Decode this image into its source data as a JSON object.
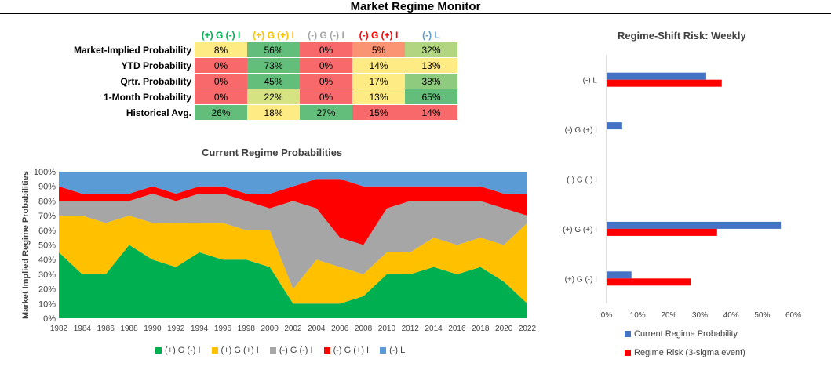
{
  "title": "Market Regime Monitor",
  "colors": {
    "green": "#00b050",
    "yellow": "#ffc000",
    "gray": "#a6a6a6",
    "red": "#ff0000",
    "blue": "#5b9bd5",
    "barblue": "#4472c4"
  },
  "table": {
    "headers": [
      {
        "label": "(+) G (-) I",
        "color": "#00b050"
      },
      {
        "label": "(+) G (+) I",
        "color": "#ffc000"
      },
      {
        "label": "(-) G (-) I",
        "color": "#a6a6a6"
      },
      {
        "label": "(-) G (+) I",
        "color": "#ff0000"
      },
      {
        "label": "(-) L",
        "color": "#5b9bd5"
      }
    ],
    "rows": [
      {
        "label": "Market-Implied Probability",
        "values": [
          "8%",
          "56%",
          "0%",
          "5%",
          "32%"
        ],
        "colors": [
          "#ffeb84",
          "#63be7b",
          "#f8696b",
          "#fa9473",
          "#b1d580"
        ]
      },
      {
        "label": "YTD Probability",
        "values": [
          "0%",
          "73%",
          "0%",
          "14%",
          "13%"
        ],
        "colors": [
          "#f8696b",
          "#63be7b",
          "#f8696b",
          "#ffeb84",
          "#ffeb84"
        ]
      },
      {
        "label": "Qrtr. Probability",
        "values": [
          "0%",
          "45%",
          "0%",
          "17%",
          "38%"
        ],
        "colors": [
          "#f8696b",
          "#63be7b",
          "#f8696b",
          "#ffeb84",
          "#8fcb7e"
        ]
      },
      {
        "label": "1-Month Probability",
        "values": [
          "0%",
          "22%",
          "0%",
          "13%",
          "65%"
        ],
        "colors": [
          "#f8696b",
          "#d6e383",
          "#f8696b",
          "#ffeb84",
          "#63be7b"
        ]
      },
      {
        "label": "Historical Avg.",
        "values": [
          "26%",
          "18%",
          "27%",
          "15%",
          "14%"
        ],
        "colors": [
          "#63be7b",
          "#ffeb84",
          "#63be7b",
          "#f8696b",
          "#f8696b"
        ]
      }
    ]
  },
  "chart_data": [
    {
      "type": "area",
      "title": "Current Regime Probabilities",
      "ylabel": "Market Implied Regime Probabilities",
      "xlabel": "",
      "ylim": [
        0,
        1
      ],
      "yticks": [
        "0%",
        "10%",
        "20%",
        "30%",
        "40%",
        "50%",
        "60%",
        "70%",
        "80%",
        "90%",
        "100%"
      ],
      "x": [
        "1982",
        "1984",
        "1986",
        "1988",
        "1990",
        "1992",
        "1994",
        "1996",
        "1998",
        "2000",
        "2002",
        "2004",
        "2006",
        "2008",
        "2010",
        "2012",
        "2014",
        "2016",
        "2018",
        "2020",
        "2022"
      ],
      "series": [
        {
          "name": "(+) G (-) I",
          "color": "#00b050",
          "values": [
            0.45,
            0.3,
            0.3,
            0.5,
            0.4,
            0.35,
            0.45,
            0.4,
            0.4,
            0.35,
            0.1,
            0.1,
            0.1,
            0.15,
            0.3,
            0.3,
            0.35,
            0.3,
            0.35,
            0.25,
            0.1
          ]
        },
        {
          "name": "(+) G (+) I",
          "color": "#ffc000",
          "values": [
            0.25,
            0.4,
            0.35,
            0.2,
            0.25,
            0.3,
            0.2,
            0.25,
            0.2,
            0.25,
            0.1,
            0.3,
            0.25,
            0.15,
            0.15,
            0.15,
            0.2,
            0.2,
            0.2,
            0.25,
            0.55
          ]
        },
        {
          "name": "(-) G (-) I",
          "color": "#a6a6a6",
          "values": [
            0.1,
            0.1,
            0.15,
            0.1,
            0.2,
            0.15,
            0.2,
            0.2,
            0.2,
            0.15,
            0.6,
            0.35,
            0.2,
            0.2,
            0.3,
            0.35,
            0.25,
            0.3,
            0.25,
            0.25,
            0.05
          ]
        },
        {
          "name": "(-) G (+) I",
          "color": "#ff0000",
          "values": [
            0.1,
            0.05,
            0.05,
            0.05,
            0.05,
            0.05,
            0.05,
            0.05,
            0.05,
            0.1,
            0.1,
            0.2,
            0.4,
            0.4,
            0.15,
            0.1,
            0.1,
            0.1,
            0.1,
            0.1,
            0.15
          ]
        },
        {
          "name": "(-) L",
          "color": "#5b9bd5",
          "values": [
            0.1,
            0.15,
            0.15,
            0.15,
            0.1,
            0.15,
            0.1,
            0.1,
            0.15,
            0.15,
            0.1,
            0.05,
            0.05,
            0.1,
            0.1,
            0.1,
            0.1,
            0.1,
            0.1,
            0.15,
            0.15
          ]
        }
      ],
      "legend": "bottom"
    },
    {
      "type": "bar",
      "orientation": "horizontal",
      "title": "Regime-Shift Risk: Weekly",
      "categories": [
        "(-) L",
        "(-) G (+) I",
        "(-) G (-) I",
        "(+) G (+) I",
        "(+) G (-) I"
      ],
      "xlim": [
        0,
        0.6
      ],
      "xticks": [
        "0%",
        "10%",
        "20%",
        "30%",
        "40%",
        "50%",
        "60%"
      ],
      "series": [
        {
          "name": "Current Regime Probability",
          "color": "#4472c4",
          "values": [
            0.32,
            0.05,
            0.0,
            0.56,
            0.08
          ]
        },
        {
          "name": "Regime Risk (3-sigma event)",
          "color": "#ff0000",
          "values": [
            0.37,
            0.0,
            0.0,
            0.355,
            0.27
          ]
        }
      ],
      "legend": "bottom"
    }
  ]
}
